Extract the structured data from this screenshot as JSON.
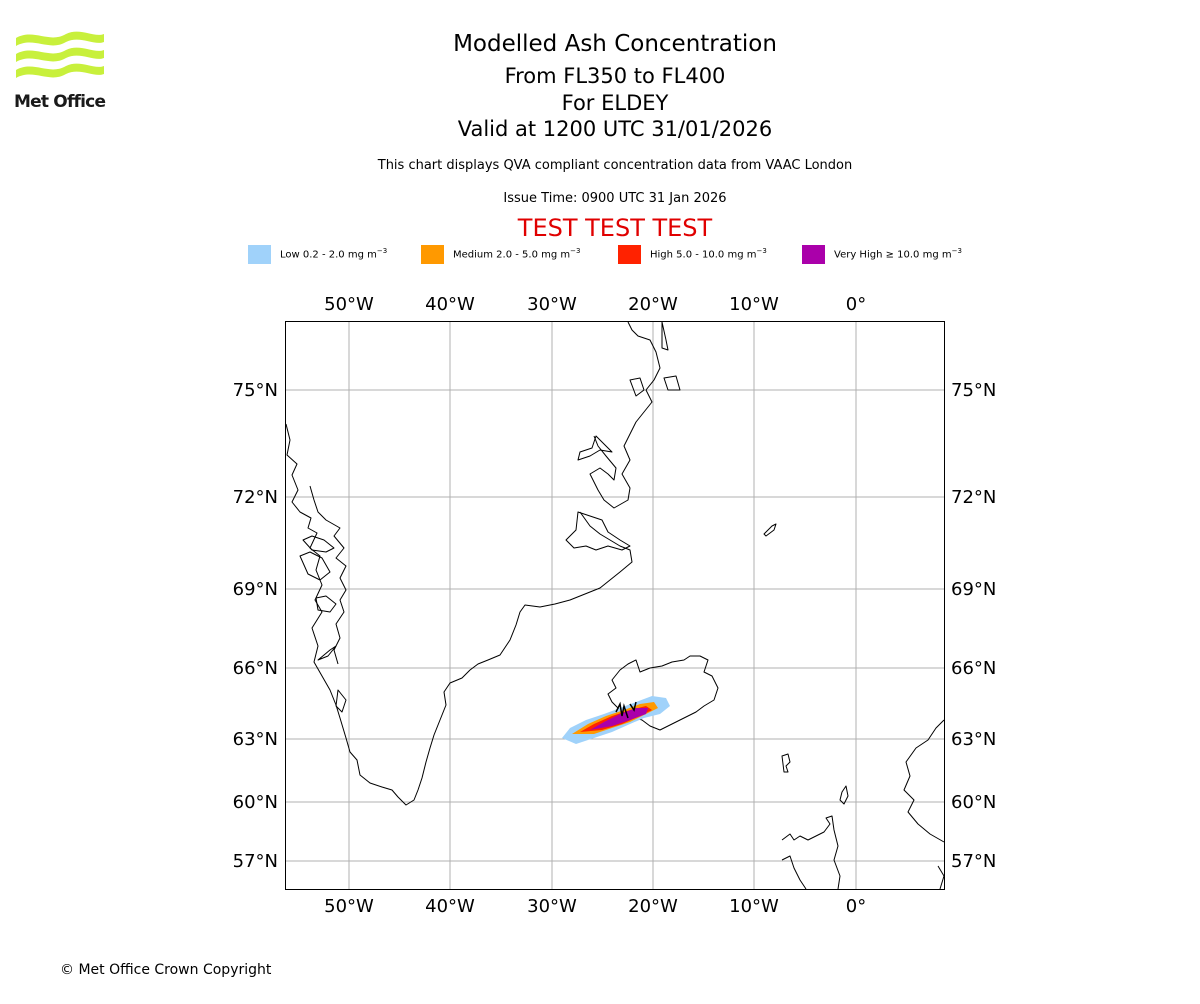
{
  "header": {
    "logo_text": "Met Office",
    "title": "Modelled Ash Concentration",
    "levels": "From FL350 to FL400",
    "for_line": "For ELDEY",
    "valid_line": "Valid at 1200 UTC 31/01/2026",
    "description": "This chart displays QVA compliant concentration data from VAAC London",
    "issue_time": "Issue Time: 0900 UTC 31 Jan 2026",
    "test_banner": "TEST TEST TEST"
  },
  "legend": [
    {
      "label": "Low 0.2 - 2.0 mg m",
      "sup": "−3",
      "color": "#a0d2fa"
    },
    {
      "label": "Medium 2.0 - 5.0 mg m",
      "sup": "−3",
      "color": "#ff9900"
    },
    {
      "label": "High 5.0 - 10.0 mg m",
      "sup": "−3",
      "color": "#ff2200"
    },
    {
      "label": "Very High ≥ 10.0 mg m",
      "sup": "−3",
      "color": "#aa00aa"
    }
  ],
  "map": {
    "lon_ticks": [
      "50°W",
      "40°W",
      "30°W",
      "20°W",
      "10°W",
      "0°"
    ],
    "lat_ticks": [
      "75°N",
      "72°N",
      "69°N",
      "66°N",
      "63°N",
      "60°N",
      "57°N"
    ],
    "grid_color": "#b0b0b0",
    "coast_color": "#000000"
  },
  "footer": {
    "copyright": "© Met Office Crown Copyright"
  }
}
